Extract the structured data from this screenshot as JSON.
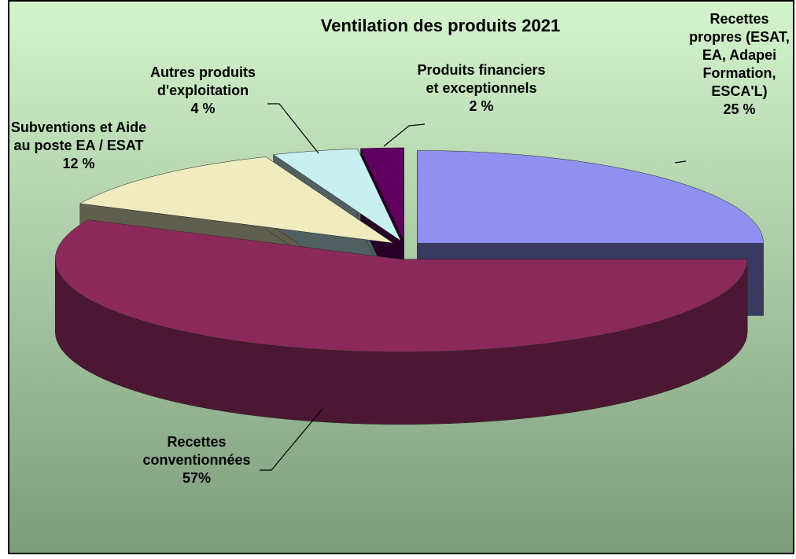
{
  "chart_data": {
    "type": "pie",
    "title": "Ventilation des produits 2021",
    "categories": [
      "Recettes propres (ESAT, EA, Adapei Formation, ESCA'L)",
      "Recettes conventionnées",
      "Subventions et Aide au poste EA / ESAT",
      "Autres produits d'exploitation",
      "Produits financiers et exceptionnels"
    ],
    "values": [
      25,
      57,
      12,
      4,
      2
    ],
    "value_labels": [
      "25 %",
      "57%",
      "12 %",
      "4 %",
      "2 %"
    ],
    "colors": [
      "#9090f0",
      "#8b2a5a",
      "#f0ecc0",
      "#c8f0f0",
      "#600060"
    ]
  }
}
